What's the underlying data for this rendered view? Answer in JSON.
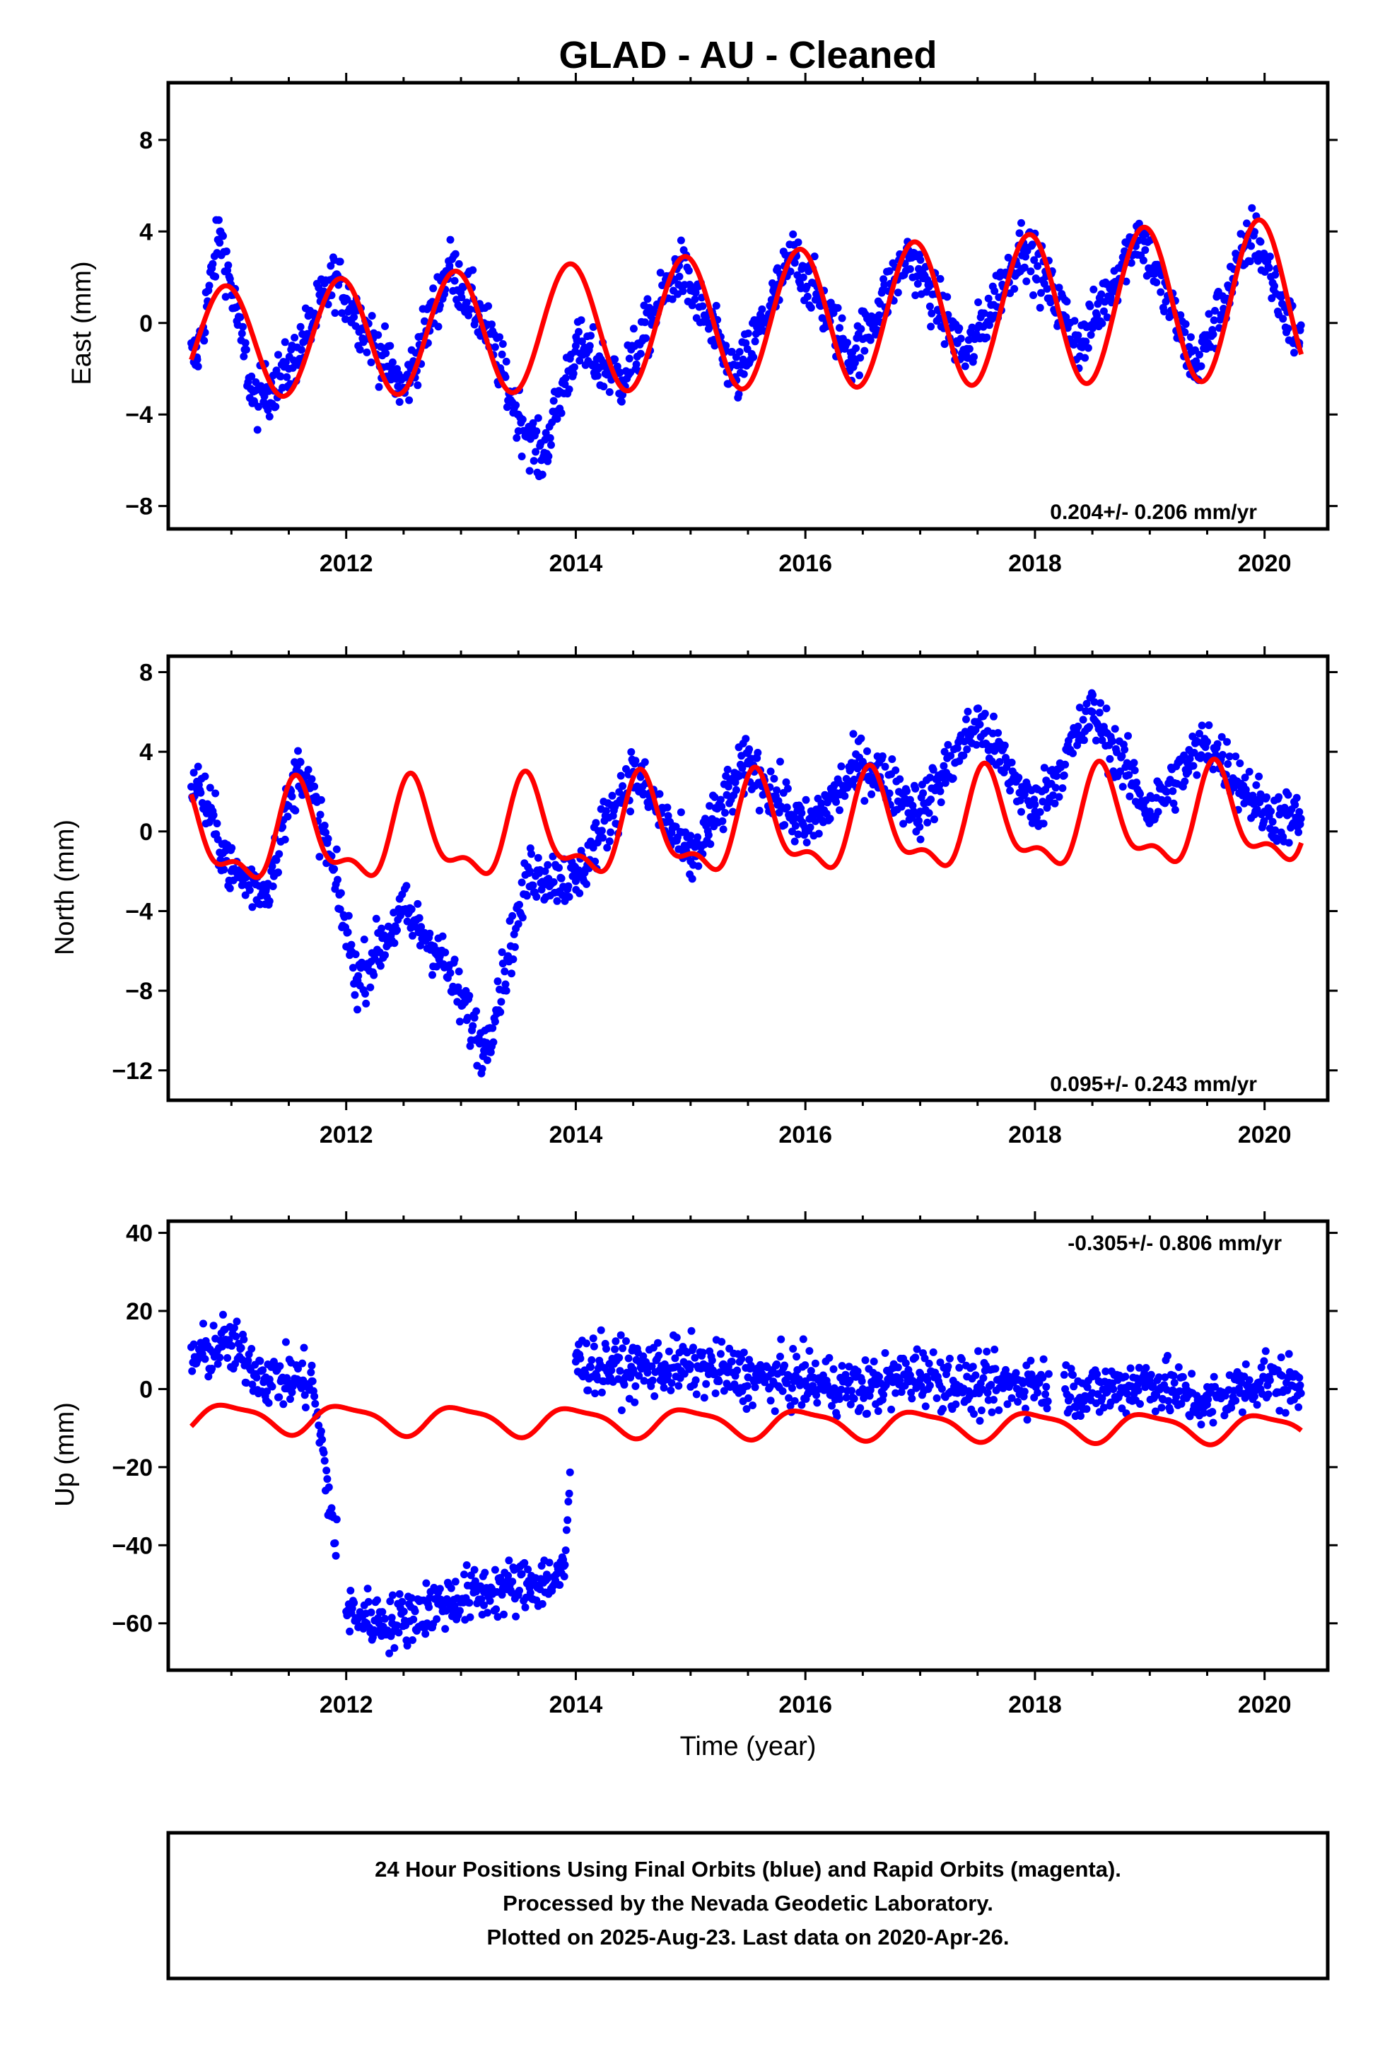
{
  "title": "GLAD  - AU - Cleaned",
  "x_axis_title": "Time (year)",
  "x_ticks": [
    "2012",
    "2014",
    "2016",
    "2018",
    "2020"
  ],
  "footer": {
    "line1": "24 Hour Positions Using Final Orbits (blue) and Rapid Orbits (magenta).",
    "line2": "Processed by the Nevada Geodetic Laboratory.",
    "line3": "Plotted on 2025-Aug-23. Last data on 2020-Apr-26."
  },
  "colors": {
    "points": "#0000ff",
    "model": "#ff0000",
    "frame": "#000000"
  },
  "chart_data": [
    {
      "type": "scatter",
      "ylabel": "East (mm)",
      "rate_text": "0.204+/- 0.206 mm/yr",
      "xlim": [
        2010.45,
        2020.55
      ],
      "ylim": [
        -9.0,
        10.5
      ],
      "yticks": [
        "8",
        "4",
        "0",
        "−4",
        "−8"
      ],
      "ytick_values": [
        8,
        4,
        0,
        -4,
        -8
      ],
      "model": {
        "offsets": [],
        "base": 0,
        "trend": 0.2,
        "annual_amp": 2.4,
        "annual_peak": 0.95,
        "semi_amp": 0.0,
        "semi_peak": 0.0,
        "amp_growth": 0.05
      },
      "series": [
        {
          "x": [
            2010.7,
            2010.9,
            2011.2,
            2011.5,
            2011.9,
            2012.2,
            2012.5,
            2012.9,
            2013.2,
            2013.5,
            2013.7,
            2014.0,
            2014.4,
            2014.9,
            2015.4,
            2015.9,
            2016.4,
            2016.9,
            2017.4,
            2017.9,
            2018.4,
            2018.9,
            2019.4,
            2019.9,
            2020.3
          ],
          "y": [
            -1.5,
            4.0,
            -3.5,
            -2.0,
            2.0,
            -0.5,
            -3.0,
            2.5,
            0.0,
            -4.0,
            -6.0,
            -1.0,
            -2.5,
            2.5,
            -2.5,
            3.0,
            -1.5,
            3.0,
            -1.5,
            3.5,
            -1.0,
            4.0,
            -2.0,
            4.0,
            -1.0
          ]
        }
      ]
    },
    {
      "type": "scatter",
      "ylabel": "North (mm)",
      "rate_text": "0.095+/- 0.243 mm/yr",
      "xlim": [
        2010.45,
        2020.55
      ],
      "ylim": [
        -13.5,
        8.8
      ],
      "yticks": [
        "8",
        "4",
        "0",
        "−4",
        "−8",
        "−12"
      ],
      "ytick_values": [
        8,
        4,
        0,
        -4,
        -8,
        -12
      ],
      "model": {
        "offsets": [],
        "base": 0,
        "trend": 0.1,
        "annual_amp": 2.2,
        "annual_peak": 0.58,
        "semi_amp": 1.0,
        "semi_peak": 0.55,
        "amp_growth": 0.0
      },
      "series": [
        {
          "x": [
            2010.7,
            2011.0,
            2011.3,
            2011.6,
            2011.8,
            2012.1,
            2012.5,
            2012.8,
            2013.2,
            2013.6,
            2014.0,
            2014.5,
            2015.0,
            2015.5,
            2016.0,
            2016.5,
            2017.0,
            2017.5,
            2018.0,
            2018.5,
            2019.0,
            2019.5,
            2020.0,
            2020.3
          ],
          "y": [
            2.5,
            -2.0,
            -3.0,
            3.5,
            0.0,
            -7.5,
            -4.0,
            -6.0,
            -11.0,
            -2.0,
            -2.5,
            3.0,
            -1.5,
            3.5,
            0.0,
            3.5,
            1.0,
            5.5,
            1.0,
            6.0,
            1.0,
            4.5,
            1.0,
            0.5
          ]
        }
      ]
    },
    {
      "type": "scatter",
      "ylabel": "Up (mm)",
      "rate_text": "-0.305+/- 0.806 mm/yr",
      "xlim": [
        2010.45,
        2020.55
      ],
      "ylim": [
        -72.0,
        43.0
      ],
      "yticks": [
        "40",
        "20",
        "0",
        "−20",
        "−40",
        "−60"
      ],
      "ytick_values": [
        40,
        20,
        0,
        -20,
        -40,
        -60
      ],
      "model": {
        "offsets": [],
        "base": -8.5,
        "trend": -0.3,
        "annual_amp": 3.5,
        "annual_peak": 0.0,
        "semi_amp": 1.0,
        "semi_peak": 0.3,
        "amp_growth": 0.0
      },
      "series": [
        {
          "x": [
            2010.7,
            2010.95,
            2011.3,
            2011.7,
            2012.0,
            2012.4,
            2012.8,
            2013.2,
            2013.6,
            2013.9,
            2014.0,
            2014.5,
            2015.0,
            2015.5,
            2016.0,
            2016.5,
            2017.0,
            2017.5,
            2018.0,
            2018.5,
            2019.0,
            2019.5,
            2020.0,
            2020.3
          ],
          "y": [
            8.0,
            12.0,
            3.0,
            2.0,
            -57.0,
            -60.0,
            -55.0,
            -52.0,
            -50.0,
            -48.0,
            7.0,
            5.0,
            6.0,
            3.0,
            2.0,
            0.0,
            4.0,
            0.0,
            2.0,
            -1.0,
            2.0,
            -4.0,
            3.0,
            0.0
          ]
        }
      ]
    }
  ]
}
